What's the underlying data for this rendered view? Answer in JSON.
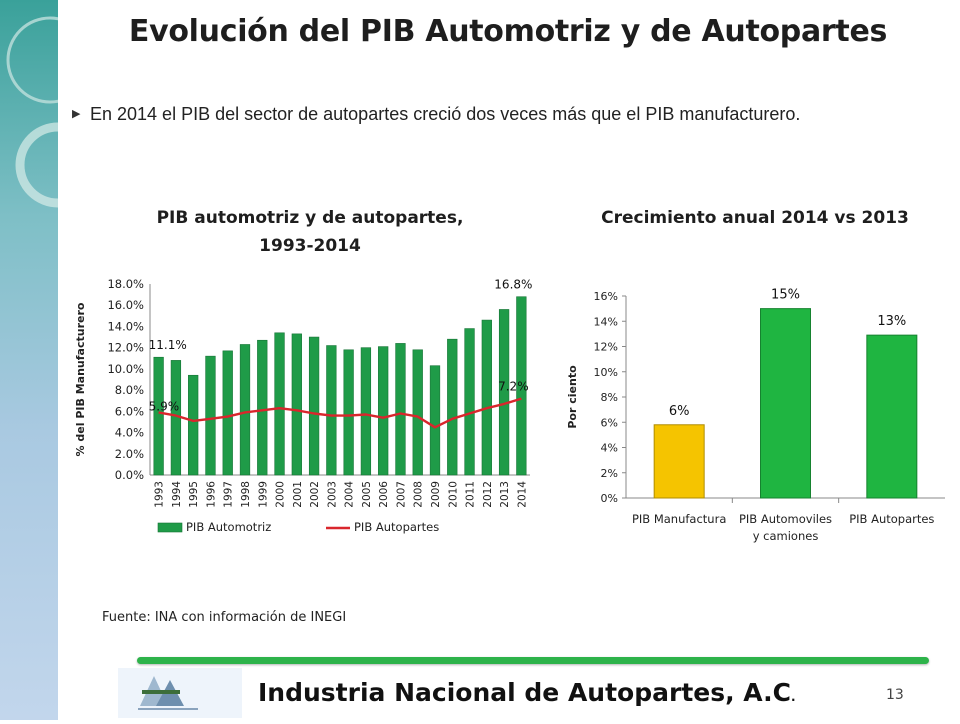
{
  "slide": {
    "title": "Evolución del PIB Automotriz y de Autopartes",
    "bullet": "En 2014 el PIB del sector de autopartes creció dos veces más que el PIB manufacturero.",
    "source": "Fuente:  INA con información de INEGI",
    "footer_title": "Industria Nacional de  Autopartes, A.C",
    "footer_dot": ".",
    "page_number": "13",
    "logo_text": "Industria Nacional de Autopartes, A.C."
  },
  "chart_data": [
    {
      "type": "bar",
      "title": "PIB automotriz y de autopartes, 1993-2014",
      "title_lines": [
        "PIB automotriz y de autopartes,",
        "1993-2014"
      ],
      "ylabel": "% del PIB Manufacturero",
      "ylim": [
        0,
        18
      ],
      "yticks": [
        "0.0%",
        "2.0%",
        "4.0%",
        "6.0%",
        "8.0%",
        "10.0%",
        "12.0%",
        "14.0%",
        "16.0%",
        "18.0%"
      ],
      "categories": [
        "1993",
        "1994",
        "1995",
        "1996",
        "1997",
        "1998",
        "1999",
        "2000",
        "2001",
        "2002",
        "2003",
        "2004",
        "2005",
        "2006",
        "2007",
        "2008",
        "2009",
        "2010",
        "2011",
        "2012",
        "2013",
        "2014"
      ],
      "series": [
        {
          "name": "PIB Automotriz",
          "kind": "bar",
          "color": "#1f9b48",
          "values": [
            11.1,
            10.8,
            9.4,
            11.2,
            11.7,
            12.3,
            12.7,
            13.4,
            13.3,
            13.0,
            12.2,
            11.8,
            12.0,
            12.1,
            12.4,
            11.8,
            10.3,
            12.8,
            13.8,
            14.6,
            15.6,
            16.8
          ]
        },
        {
          "name": "PIB Autopartes",
          "kind": "line",
          "color": "#d9262c",
          "values": [
            5.9,
            5.6,
            5.1,
            5.3,
            5.5,
            5.9,
            6.1,
            6.3,
            6.1,
            5.8,
            5.6,
            5.6,
            5.7,
            5.4,
            5.8,
            5.5,
            4.5,
            5.3,
            5.8,
            6.3,
            6.7,
            7.2
          ]
        }
      ],
      "data_labels": [
        {
          "series": 0,
          "index": 0,
          "text": "11.1%"
        },
        {
          "series": 0,
          "index": 21,
          "text": "16.8%"
        },
        {
          "series": 1,
          "index": 0,
          "text": "5.9%"
        },
        {
          "series": 1,
          "index": 21,
          "text": "7.2%"
        }
      ],
      "legend": [
        "PIB Automotriz",
        "PIB Autopartes"
      ],
      "legend_position": "bottom",
      "grid": false
    },
    {
      "type": "bar",
      "title": "Crecimiento anual 2014 vs 2013",
      "ylabel": "Por ciento",
      "ylim": [
        0,
        16
      ],
      "yticks": [
        "0%",
        "2%",
        "4%",
        "6%",
        "8%",
        "10%",
        "12%",
        "14%",
        "16%"
      ],
      "categories": [
        [
          "PIB Manufactura"
        ],
        [
          "PIB Automoviles",
          "y camiones"
        ],
        [
          "PIB Autopartes"
        ]
      ],
      "values": [
        5.8,
        15.0,
        12.9
      ],
      "colors": [
        "#f5c400",
        "#1fb541",
        "#1fb541"
      ],
      "value_labels": [
        "6%",
        "15%",
        "13%"
      ],
      "grid": false
    }
  ]
}
